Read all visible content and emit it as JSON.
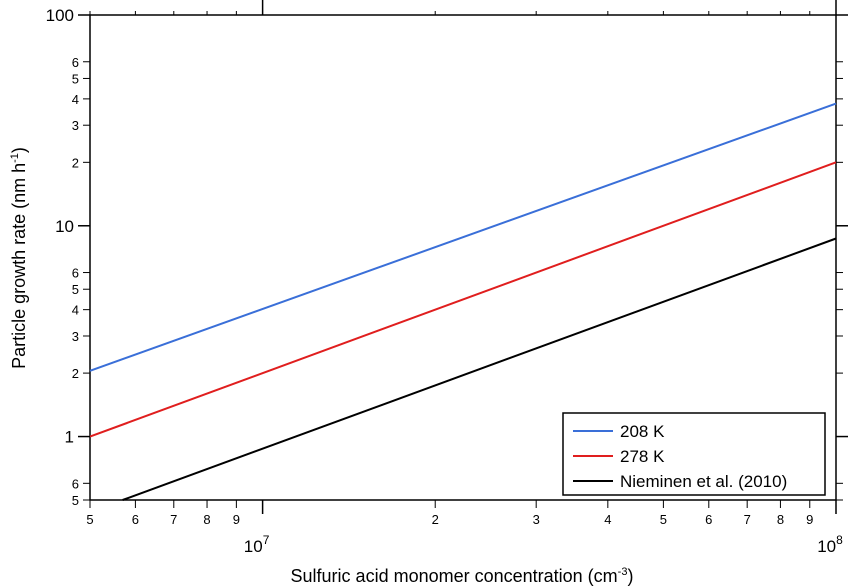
{
  "chart_data": {
    "type": "line",
    "xlabel": {
      "text": "Sulfuric acid monomer concentration (cm",
      "sup": "-3",
      "tail": ")"
    },
    "ylabel": {
      "text": "Particle growth rate (nm h",
      "sup": "-1",
      "tail": ")"
    },
    "x_scale": "log",
    "y_scale": "log",
    "xlim": [
      5000000,
      100000000
    ],
    "ylim": [
      0.5,
      100
    ],
    "x_minor_ticks": [
      {
        "value": 5000000,
        "label": "5"
      },
      {
        "value": 6000000,
        "label": "6"
      },
      {
        "value": 7000000,
        "label": "7"
      },
      {
        "value": 8000000,
        "label": "8"
      },
      {
        "value": 9000000,
        "label": "9"
      },
      {
        "value": 20000000,
        "label": "2"
      },
      {
        "value": 30000000,
        "label": "3"
      },
      {
        "value": 40000000,
        "label": "4"
      },
      {
        "value": 50000000,
        "label": "5"
      },
      {
        "value": 60000000,
        "label": "6"
      },
      {
        "value": 70000000,
        "label": "7"
      },
      {
        "value": 80000000,
        "label": "8"
      },
      {
        "value": 90000000,
        "label": "9"
      }
    ],
    "x_major_ticks": [
      {
        "value": 10000000,
        "base": "10",
        "exp": "7"
      },
      {
        "value": 100000000,
        "base": "10",
        "exp": "8"
      }
    ],
    "y_major_ticks": [
      {
        "value": 1,
        "label": "1"
      },
      {
        "value": 10,
        "label": "10"
      },
      {
        "value": 100,
        "label": "100"
      }
    ],
    "y_minor_ticks": [
      {
        "value": 0.5,
        "label": "5"
      },
      {
        "value": 0.6,
        "label": "6"
      },
      {
        "value": 2,
        "label": "2"
      },
      {
        "value": 3,
        "label": "3"
      },
      {
        "value": 4,
        "label": "4"
      },
      {
        "value": 5,
        "label": "5"
      },
      {
        "value": 6,
        "label": "6"
      },
      {
        "value": 20,
        "label": "2"
      },
      {
        "value": 30,
        "label": "3"
      },
      {
        "value": 40,
        "label": "4"
      },
      {
        "value": 50,
        "label": "5"
      },
      {
        "value": 60,
        "label": "6"
      }
    ],
    "series": [
      {
        "name": "208 K",
        "color": "#3a6fd8",
        "x": [
          5000000,
          100000000
        ],
        "y": [
          2.05,
          38
        ]
      },
      {
        "name": "278 K",
        "color": "#e01e1e",
        "x": [
          5000000,
          100000000
        ],
        "y": [
          1.0,
          20
        ]
      },
      {
        "name": "Nieminen et al. (2010)",
        "color": "#000000",
        "x": [
          5700000,
          100000000
        ],
        "y": [
          0.5,
          8.7
        ]
      }
    ],
    "legend_position": "bottom-right",
    "grid": false
  }
}
